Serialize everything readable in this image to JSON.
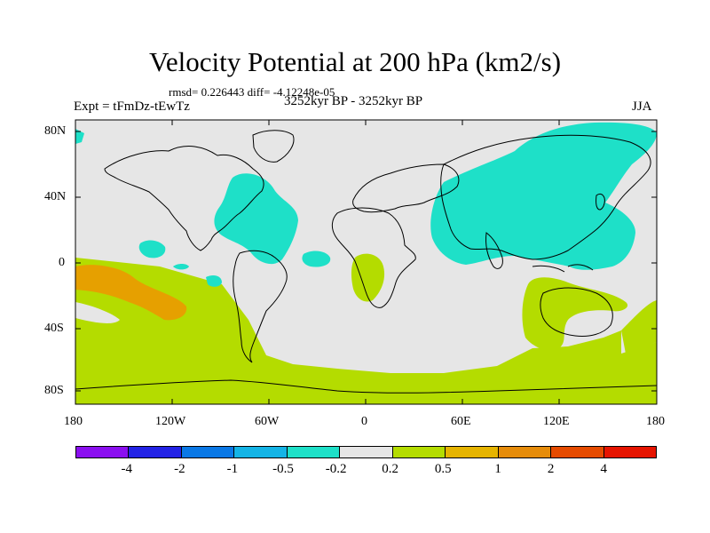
{
  "title": "Velocity Potential at 200 hPa (km2/s)",
  "stats": "rmsd= 0.226443  diff= -4.12248e-05",
  "expt": "Expt = tFmDz-tEwTz",
  "period": "3252kyr BP - 3252kyr BP",
  "season": "JJA",
  "lat_labels": [
    "80N",
    "40N",
    "0",
    "40S",
    "80S"
  ],
  "lon_labels": [
    "180",
    "120W",
    "60W",
    "0",
    "60E",
    "120E",
    "180"
  ],
  "colorbar": {
    "colors": [
      "#8b0ff0",
      "#2323e6",
      "#0a78e6",
      "#14b4e6",
      "#1ee0c8",
      "#e6e6e6",
      "#b4dc00",
      "#e6b400",
      "#e68c0a",
      "#e64b00",
      "#e61400"
    ],
    "labels": [
      "-4",
      "-2",
      "-1",
      "-0.5",
      "-0.2",
      "0.2",
      "0.5",
      "1",
      "2",
      "4"
    ]
  },
  "legend": {
    "cyan": "#1ee0c8",
    "gray": "#e6e6e6",
    "green": "#b4dc00",
    "orange": "#e6a000"
  }
}
